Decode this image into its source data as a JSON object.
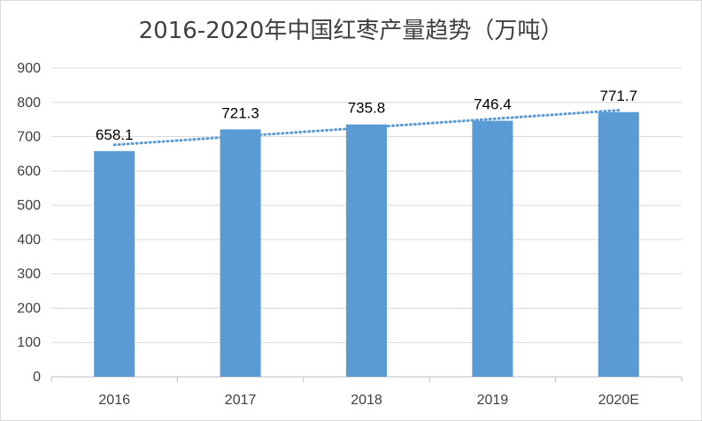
{
  "chart_data": {
    "type": "bar",
    "title": "2016-2020年中国红枣产量趋势（万吨）",
    "categories": [
      "2016",
      "2017",
      "2018",
      "2019",
      "2020E"
    ],
    "values": [
      658.1,
      721.3,
      735.8,
      746.4,
      771.7
    ],
    "data_labels": [
      "658.1",
      "721.3",
      "735.8",
      "746.4",
      "771.7"
    ],
    "ylim": [
      0,
      900
    ],
    "yticks": [
      "0",
      "100",
      "200",
      "300",
      "400",
      "500",
      "600",
      "700",
      "800",
      "900"
    ],
    "ytick_values": [
      0,
      100,
      200,
      300,
      400,
      500,
      600,
      700,
      800,
      900
    ],
    "trendline": {
      "type": "linear",
      "style": "dotted"
    },
    "grid": true,
    "legend": "none",
    "colors": {
      "bar": "#5b9bd5",
      "trendline": "#5b9bd5",
      "grid": "#d9d9d9"
    }
  }
}
